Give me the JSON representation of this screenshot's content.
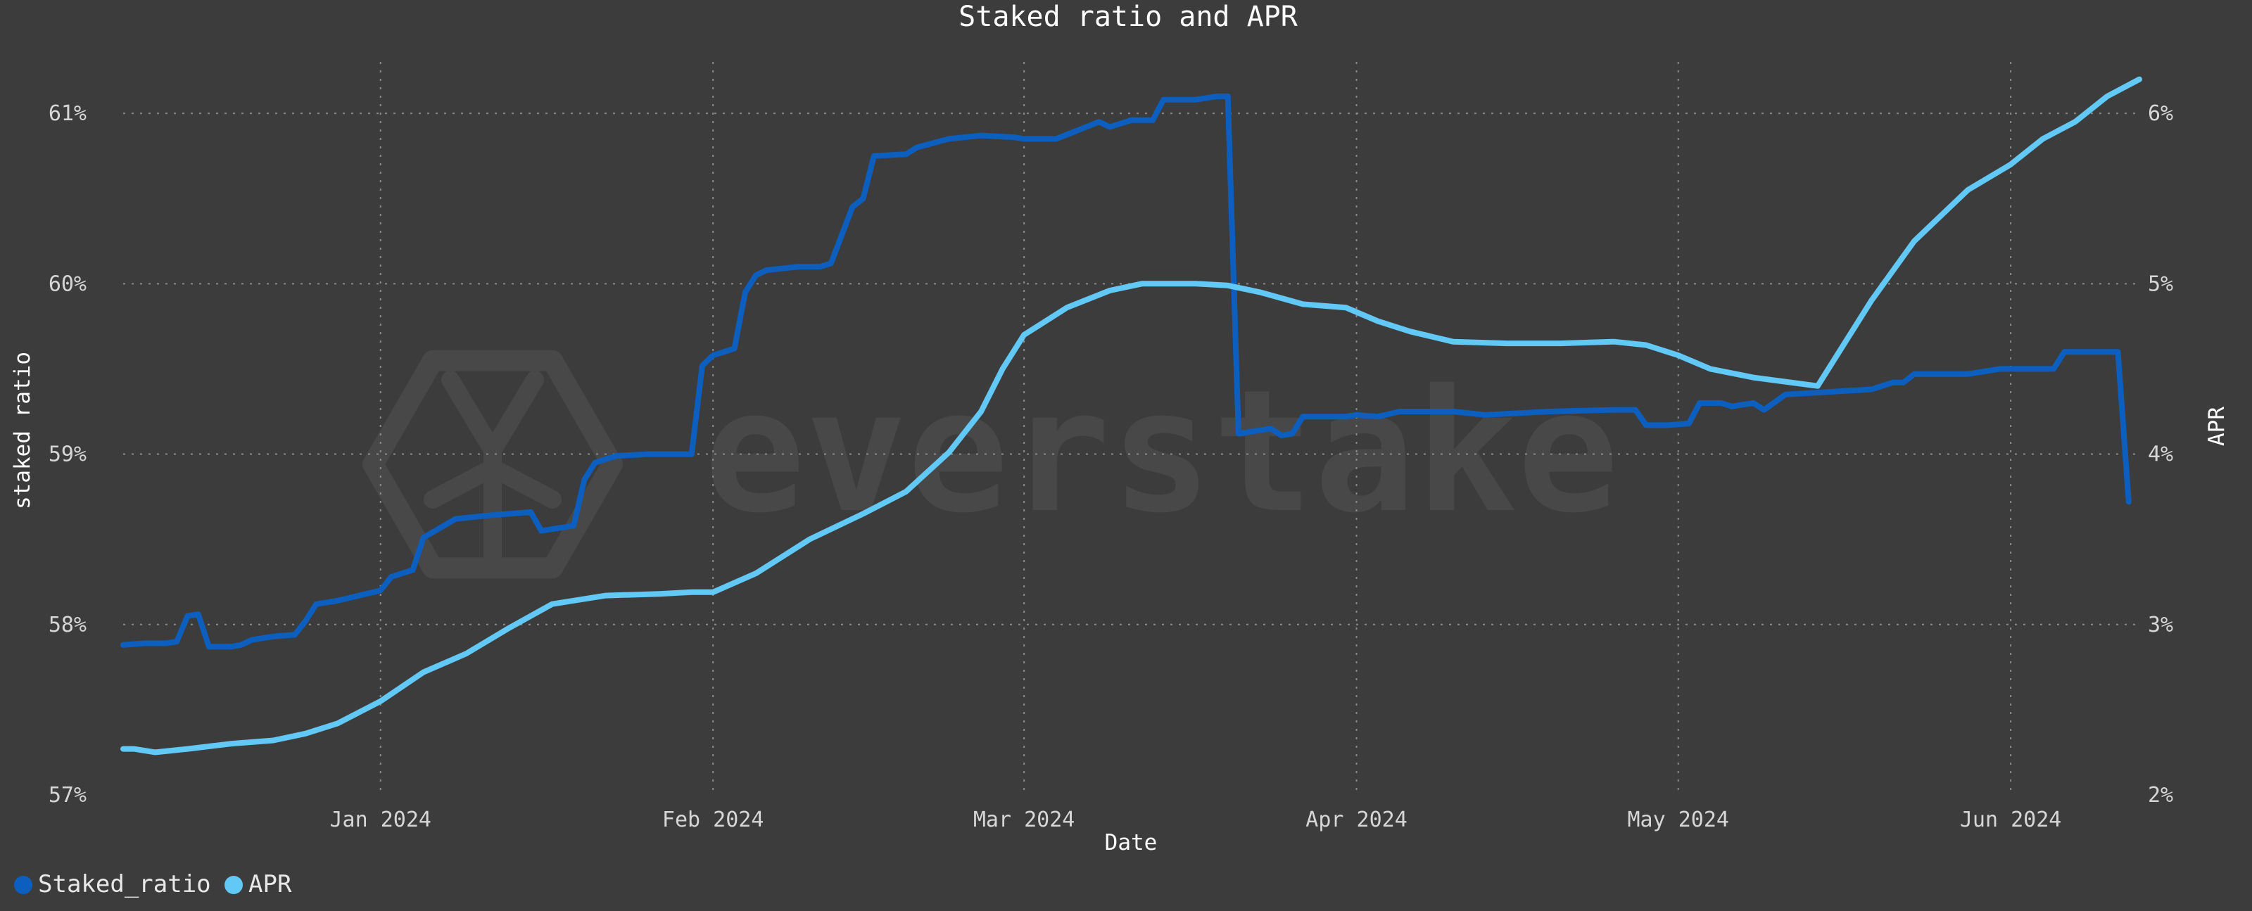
{
  "chart_data": {
    "type": "line",
    "title": "Staked ratio and APR",
    "xlabel": "Date",
    "ylabel": "staked ratio",
    "y2label": "APR",
    "x_ticks": [
      "Jan 2024",
      "Feb 2024",
      "Mar 2024",
      "Apr 2024",
      "May 2024",
      "Jun 2024"
    ],
    "y_ticks": [
      "57%",
      "58%",
      "59%",
      "60%",
      "61%"
    ],
    "y2_ticks": [
      "2%",
      "3%",
      "4%",
      "5%",
      "6%"
    ],
    "xlim": [
      "2023-12-08",
      "2024-06-13"
    ],
    "ylim": [
      57,
      61.5
    ],
    "y2lim": [
      2,
      6.5
    ],
    "grid": true,
    "legend_position": "bottom-left",
    "watermark": "everstake",
    "series": [
      {
        "name": "Staked_ratio",
        "axis": "left",
        "color": "#0d5fbf",
        "points": [
          [
            "2023-12-08",
            57.88
          ],
          [
            "2023-12-10",
            57.89
          ],
          [
            "2023-12-12",
            57.89
          ],
          [
            "2023-12-13",
            57.9
          ],
          [
            "2023-12-14",
            58.05
          ],
          [
            "2023-12-15",
            58.06
          ],
          [
            "2023-12-16",
            57.87
          ],
          [
            "2023-12-18",
            57.87
          ],
          [
            "2023-12-19",
            57.88
          ],
          [
            "2023-12-20",
            57.91
          ],
          [
            "2023-12-22",
            57.93
          ],
          [
            "2023-12-24",
            57.94
          ],
          [
            "2023-12-25",
            58.02
          ],
          [
            "2023-12-26",
            58.12
          ],
          [
            "2023-12-28",
            58.14
          ],
          [
            "2023-12-30",
            58.17
          ],
          [
            "2024-01-01",
            58.2
          ],
          [
            "2024-01-02",
            58.28
          ],
          [
            "2024-01-03",
            58.3
          ],
          [
            "2024-01-04",
            58.32
          ],
          [
            "2024-01-05",
            58.51
          ],
          [
            "2024-01-08",
            58.62
          ],
          [
            "2024-01-11",
            58.64
          ],
          [
            "2024-01-15",
            58.66
          ],
          [
            "2024-01-16",
            58.55
          ],
          [
            "2024-01-19",
            58.58
          ],
          [
            "2024-01-20",
            58.85
          ],
          [
            "2024-01-21",
            58.95
          ],
          [
            "2024-01-23",
            58.99
          ],
          [
            "2024-01-26",
            59.0
          ],
          [
            "2024-01-29",
            59.0
          ],
          [
            "2024-01-30",
            59.0
          ],
          [
            "2024-01-31",
            59.52
          ],
          [
            "2024-02-01",
            59.58
          ],
          [
            "2024-02-03",
            59.62
          ],
          [
            "2024-02-04",
            59.95
          ],
          [
            "2024-02-05",
            60.05
          ],
          [
            "2024-02-06",
            60.08
          ],
          [
            "2024-02-09",
            60.1
          ],
          [
            "2024-02-11",
            60.1
          ],
          [
            "2024-02-12",
            60.12
          ],
          [
            "2024-02-14",
            60.45
          ],
          [
            "2024-02-15",
            60.5
          ],
          [
            "2024-02-16",
            60.75
          ],
          [
            "2024-02-19",
            60.76
          ],
          [
            "2024-02-20",
            60.8
          ],
          [
            "2024-02-23",
            60.85
          ],
          [
            "2024-02-26",
            60.87
          ],
          [
            "2024-02-29",
            60.86
          ],
          [
            "2024-03-01",
            60.85
          ],
          [
            "2024-03-04",
            60.85
          ],
          [
            "2024-03-06",
            60.9
          ],
          [
            "2024-03-08",
            60.95
          ],
          [
            "2024-03-09",
            60.92
          ],
          [
            "2024-03-11",
            60.96
          ],
          [
            "2024-03-13",
            60.96
          ],
          [
            "2024-03-14",
            61.08
          ],
          [
            "2024-03-17",
            61.08
          ],
          [
            "2024-03-19",
            61.1
          ],
          [
            "2024-03-20",
            61.1
          ],
          [
            "2024-03-21",
            59.12
          ],
          [
            "2024-03-22",
            59.13
          ],
          [
            "2024-03-24",
            59.15
          ],
          [
            "2024-03-25",
            59.11
          ],
          [
            "2024-03-26",
            59.12
          ],
          [
            "2024-03-27",
            59.22
          ],
          [
            "2024-03-31",
            59.22
          ],
          [
            "2024-04-01",
            59.23
          ],
          [
            "2024-04-03",
            59.22
          ],
          [
            "2024-04-05",
            59.25
          ],
          [
            "2024-04-10",
            59.25
          ],
          [
            "2024-04-13",
            59.23
          ],
          [
            "2024-04-19",
            59.25
          ],
          [
            "2024-04-25",
            59.26
          ],
          [
            "2024-04-27",
            59.26
          ],
          [
            "2024-04-28",
            59.17
          ],
          [
            "2024-04-30",
            59.17
          ],
          [
            "2024-05-02",
            59.18
          ],
          [
            "2024-05-03",
            59.3
          ],
          [
            "2024-05-05",
            59.3
          ],
          [
            "2024-05-06",
            59.28
          ],
          [
            "2024-05-08",
            59.3
          ],
          [
            "2024-05-09",
            59.26
          ],
          [
            "2024-05-11",
            59.35
          ],
          [
            "2024-05-19",
            59.38
          ],
          [
            "2024-05-21",
            59.42
          ],
          [
            "2024-05-22",
            59.42
          ],
          [
            "2024-05-23",
            59.47
          ],
          [
            "2024-05-28",
            59.47
          ],
          [
            "2024-05-31",
            59.5
          ],
          [
            "2024-06-05",
            59.5
          ],
          [
            "2024-06-06",
            59.6
          ],
          [
            "2024-06-10",
            59.6
          ],
          [
            "2024-06-11",
            59.6
          ],
          [
            "2024-06-12",
            58.72
          ]
        ]
      },
      {
        "name": "APR",
        "axis": "right",
        "color": "#62c8f5",
        "points": [
          [
            "2023-12-08",
            2.27
          ],
          [
            "2023-12-09",
            2.27
          ],
          [
            "2023-12-11",
            2.25
          ],
          [
            "2023-12-14",
            2.27
          ],
          [
            "2023-12-18",
            2.3
          ],
          [
            "2023-12-22",
            2.32
          ],
          [
            "2023-12-25",
            2.36
          ],
          [
            "2023-12-28",
            2.42
          ],
          [
            "2024-01-01",
            2.55
          ],
          [
            "2024-01-05",
            2.72
          ],
          [
            "2024-01-09",
            2.83
          ],
          [
            "2024-01-13",
            2.98
          ],
          [
            "2024-01-17",
            3.12
          ],
          [
            "2024-01-22",
            3.17
          ],
          [
            "2024-01-27",
            3.18
          ],
          [
            "2024-01-30",
            3.19
          ],
          [
            "2024-02-01",
            3.19
          ],
          [
            "2024-02-05",
            3.3
          ],
          [
            "2024-02-10",
            3.5
          ],
          [
            "2024-02-15",
            3.65
          ],
          [
            "2024-02-19",
            3.78
          ],
          [
            "2024-02-23",
            4.01
          ],
          [
            "2024-02-26",
            4.25
          ],
          [
            "2024-02-28",
            4.5
          ],
          [
            "2024-03-01",
            4.7
          ],
          [
            "2024-03-05",
            4.86
          ],
          [
            "2024-03-09",
            4.96
          ],
          [
            "2024-03-12",
            5.0
          ],
          [
            "2024-03-14",
            5.0
          ],
          [
            "2024-03-17",
            5.0
          ],
          [
            "2024-03-20",
            4.99
          ],
          [
            "2024-03-23",
            4.95
          ],
          [
            "2024-03-27",
            4.88
          ],
          [
            "2024-03-31",
            4.86
          ],
          [
            "2024-04-03",
            4.78
          ],
          [
            "2024-04-06",
            4.72
          ],
          [
            "2024-04-10",
            4.66
          ],
          [
            "2024-04-15",
            4.65
          ],
          [
            "2024-04-20",
            4.65
          ],
          [
            "2024-04-25",
            4.66
          ],
          [
            "2024-04-28",
            4.64
          ],
          [
            "2024-05-01",
            4.58
          ],
          [
            "2024-05-04",
            4.5
          ],
          [
            "2024-05-08",
            4.45
          ],
          [
            "2024-05-14",
            4.4
          ],
          [
            "2024-05-19",
            4.9
          ],
          [
            "2024-05-23",
            5.25
          ],
          [
            "2024-05-28",
            5.55
          ],
          [
            "2024-06-01",
            5.7
          ],
          [
            "2024-06-04",
            5.85
          ],
          [
            "2024-06-07",
            5.95
          ],
          [
            "2024-06-10",
            6.1
          ],
          [
            "2024-06-13",
            6.2
          ]
        ]
      }
    ]
  },
  "colors": {
    "background": "#3c3c3c",
    "grid": "#8a8a8a",
    "text": "#d6d6d6",
    "watermark": "#484848"
  }
}
